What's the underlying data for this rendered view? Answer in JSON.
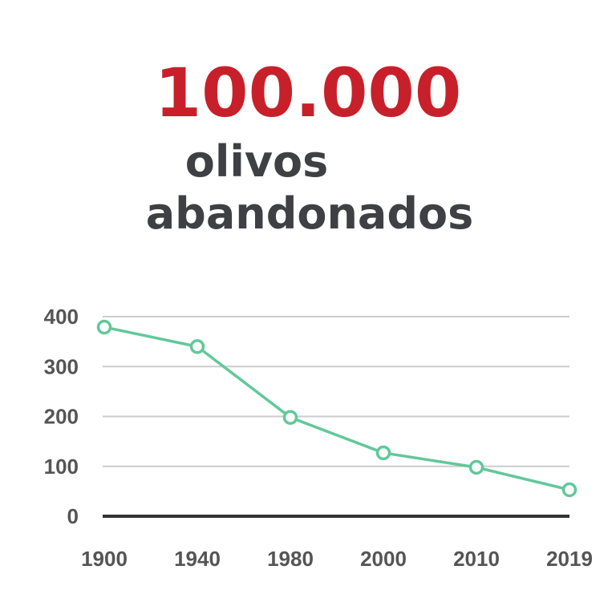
{
  "chart_data": {
    "type": "line",
    "title": "100.000",
    "subtitle_lines": [
      "olivos",
      "abandonados"
    ],
    "categories": [
      "1900",
      "1940",
      "1980",
      "2000",
      "2010",
      "2019"
    ],
    "series": [
      {
        "color": "#62c89a",
        "values": [
          379,
          340,
          198,
          127,
          98,
          53
        ]
      }
    ],
    "ylim": [
      0,
      400
    ],
    "yticks": [
      0,
      100,
      200,
      300,
      400
    ],
    "grid": true
  }
}
